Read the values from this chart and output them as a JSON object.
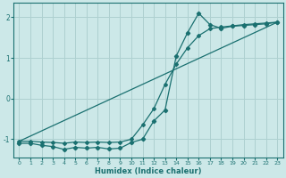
{
  "title": "",
  "xlabel": "Humidex (Indice chaleur)",
  "ylabel": "",
  "bg_color": "#cce8e8",
  "grid_color": "#aed0d0",
  "line_color": "#1a7070",
  "xlim": [
    -0.5,
    23.5
  ],
  "ylim": [
    -1.45,
    2.35
  ],
  "xticks": [
    0,
    1,
    2,
    3,
    4,
    5,
    6,
    7,
    8,
    9,
    10,
    11,
    12,
    13,
    14,
    15,
    16,
    17,
    18,
    19,
    20,
    21,
    22,
    23
  ],
  "yticks": [
    -1,
    0,
    1,
    2
  ],
  "series1_x": [
    0,
    1,
    2,
    3,
    4,
    5,
    6,
    7,
    8,
    9,
    10,
    11,
    12,
    13,
    14,
    15,
    16,
    17,
    18,
    19,
    20,
    21,
    22,
    23
  ],
  "series1_y": [
    -1.1,
    -1.1,
    -1.15,
    -1.18,
    -1.25,
    -1.2,
    -1.22,
    -1.2,
    -1.24,
    -1.22,
    -1.08,
    -1.0,
    -0.55,
    -0.28,
    1.05,
    1.62,
    2.1,
    1.82,
    1.73,
    1.78,
    1.8,
    1.82,
    1.84,
    1.88
  ],
  "series2_x": [
    0,
    1,
    2,
    3,
    4,
    5,
    6,
    7,
    8,
    9,
    10,
    11,
    12,
    13,
    14,
    15,
    16,
    17,
    18,
    19,
    20,
    21,
    22,
    23
  ],
  "series2_y": [
    -1.05,
    -1.05,
    -1.07,
    -1.08,
    -1.1,
    -1.07,
    -1.08,
    -1.07,
    -1.08,
    -1.07,
    -1.0,
    -0.65,
    -0.25,
    0.35,
    0.85,
    1.25,
    1.55,
    1.72,
    1.76,
    1.79,
    1.82,
    1.84,
    1.86,
    1.88
  ],
  "series3_x": [
    0,
    23
  ],
  "series3_y": [
    -1.05,
    1.88
  ]
}
